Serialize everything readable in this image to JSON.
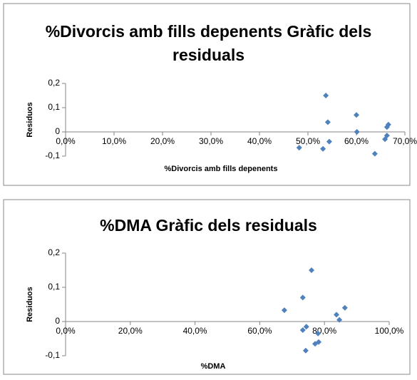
{
  "chart_data": [
    {
      "type": "scatter",
      "title": "%Divorcis amb fills depenents Gràfic dels residuals",
      "x_label": "%Divorcis amb fills depenents",
      "y_label": "Residuos",
      "color": "#4f81bd",
      "x": [
        53.7,
        54.1,
        60,
        60.1,
        53.1,
        54.4,
        48.2,
        63.8,
        66.3,
        66.6,
        65.9,
        66.3
      ],
      "values": [
        0.15,
        0.04,
        0.07,
        0.0,
        -0.07,
        -0.04,
        -0.065,
        -0.09,
        0.02,
        0.03,
        -0.03,
        -0.015
      ],
      "xlim": [
        0,
        70
      ],
      "xticks": [
        {
          "value": 0,
          "label": "0,0%"
        },
        {
          "value": 10,
          "label": "10,0%"
        },
        {
          "value": 20,
          "label": "20,0%"
        },
        {
          "value": 30,
          "label": "30,0%"
        },
        {
          "value": 40,
          "label": "40,0%"
        },
        {
          "value": 50,
          "label": "50,0%"
        },
        {
          "value": 60,
          "label": "60,0%"
        },
        {
          "value": 70,
          "label": "70,0%"
        }
      ],
      "ylim": [
        -0.1,
        0.2
      ],
      "yticks": [
        {
          "value": -0.1,
          "label": "-0,1"
        },
        0,
        {
          "value": 0.1,
          "label": "0,1"
        },
        {
          "value": 0.2,
          "label": "0,2"
        }
      ]
    },
    {
      "type": "scatter",
      "title": "%DMA Gràfic dels residuals",
      "x_label": "%DMA",
      "y_label": "Residuos",
      "color": "#4f81bd",
      "x": [
        67.6,
        73.3,
        76,
        73.3,
        74.4,
        74.2,
        77.1,
        78.2,
        78,
        83.7,
        84.6,
        86.3
      ],
      "values": [
        0.033,
        0.07,
        0.15,
        -0.025,
        -0.015,
        -0.085,
        -0.065,
        -0.06,
        -0.035,
        0.02,
        0.005,
        0.04
      ],
      "xlim": [
        0,
        100
      ],
      "xticks": [
        {
          "value": 0,
          "label": "0,0%"
        },
        {
          "value": 20,
          "label": "20,0%"
        },
        {
          "value": 40,
          "label": "40,0%"
        },
        {
          "value": 60,
          "label": "60,0%"
        },
        {
          "value": 80,
          "label": "80,0%"
        },
        {
          "value": 100,
          "label": "100,0%"
        }
      ],
      "ylim": [
        -0.1,
        0.2
      ],
      "yticks": [
        {
          "value": -0.1,
          "label": "-0,1"
        },
        0,
        {
          "value": 0.1,
          "label": "0,1"
        },
        {
          "value": 0.2,
          "label": "0,2"
        }
      ]
    }
  ]
}
